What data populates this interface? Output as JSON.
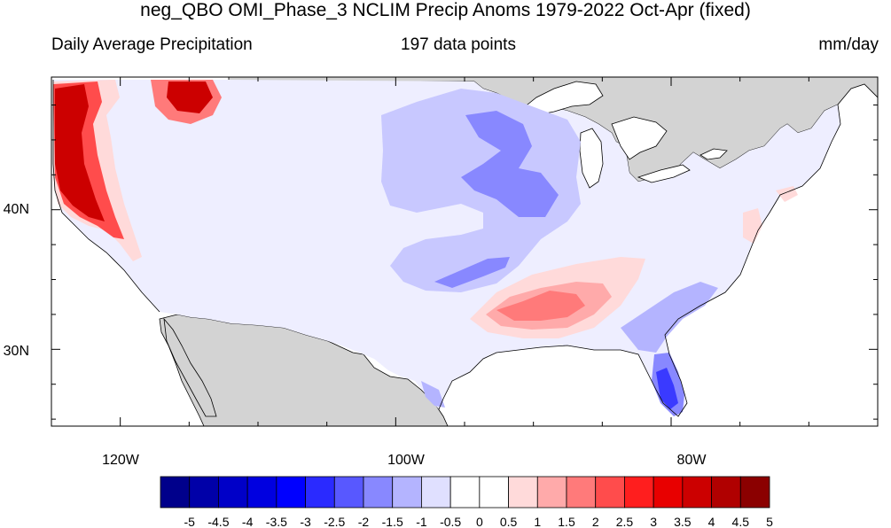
{
  "header": {
    "title": "neg_QBO OMI_Phase_3 NCLIM Precip Anoms 1979-2022 Oct-Apr (fixed)",
    "left_label": "Daily Average Precipitation",
    "center_label": "197 data points",
    "right_label": "mm/day"
  },
  "map": {
    "lon_range": [
      -125,
      -65
    ],
    "lat_range": [
      24.5,
      49.5
    ],
    "x_ticks": [
      "120W",
      "100W",
      "80W"
    ],
    "y_ticks": [
      "40N",
      "30N"
    ]
  },
  "colorbar": {
    "labels": [
      "-5",
      "-4.5",
      "-4",
      "-3.5",
      "-3",
      "-2.5",
      "-2",
      "-1.5",
      "-1",
      "-0.5",
      "0",
      "0.5",
      "1",
      "1.5",
      "2",
      "2.5",
      "3",
      "3.5",
      "4",
      "4.5",
      "5"
    ],
    "colors": [
      "#00008b",
      "#0000a8",
      "#0000c8",
      "#0000e0",
      "#0000ff",
      "#2a2aff",
      "#5858ff",
      "#8888ff",
      "#b4b4ff",
      "#e0e0ff",
      "#ffffff",
      "#ffffff",
      "#ffdada",
      "#ffaaaa",
      "#ff7a7a",
      "#ff4c4c",
      "#ff1e1e",
      "#e80000",
      "#cc0000",
      "#b00000",
      "#8b0000"
    ]
  }
}
